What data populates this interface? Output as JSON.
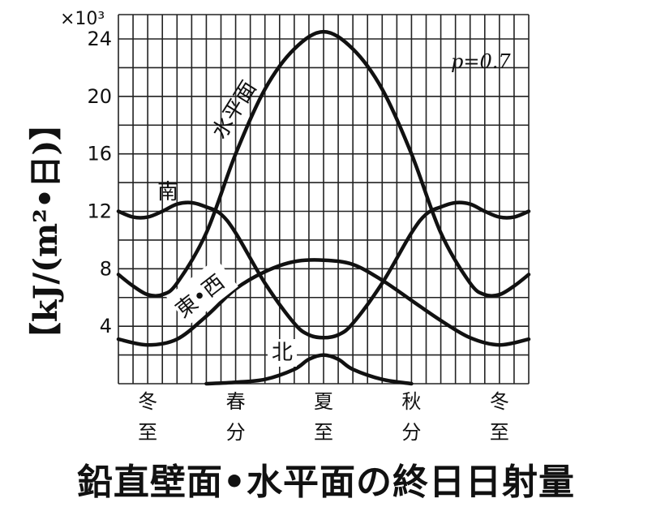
{
  "chart_data": {
    "type": "line",
    "title": "鉛直壁面•水平面の終日日射量",
    "ylabel": "【kJ/(m²•日)】",
    "y_multiplier": "×10³",
    "annotation": "p=0.7",
    "ylim": [
      0,
      24
    ],
    "yticks": [
      4,
      8,
      12,
      16,
      20,
      24
    ],
    "grid": true,
    "x_ticks": [
      {
        "line1": "冬",
        "line2": "至",
        "x": 0
      },
      {
        "line1": "春",
        "line2": "分",
        "x": 3
      },
      {
        "line1": "夏",
        "line2": "至",
        "x": 6
      },
      {
        "line1": "秋",
        "line2": "分",
        "x": 9
      },
      {
        "line1": "冬",
        "line2": "至",
        "x": 12
      }
    ],
    "xlim": [
      -1,
      13
    ],
    "series": [
      {
        "name": "水平面",
        "x": [
          -1,
          -0.5,
          0,
          0.5,
          1,
          2,
          3,
          4,
          5,
          6,
          7,
          8,
          9,
          10,
          11,
          11.5,
          12,
          12.5,
          13
        ],
        "y": [
          7.6,
          6.8,
          6.2,
          6.2,
          7.0,
          10.5,
          16.0,
          20.5,
          23.3,
          24.5,
          23.3,
          20.5,
          16.0,
          10.5,
          7.0,
          6.2,
          6.2,
          6.8,
          7.6
        ]
      },
      {
        "name": "南",
        "x": [
          -1,
          -0.5,
          0,
          0.5,
          1,
          1.5,
          2,
          2.5,
          3,
          4,
          5,
          5.5,
          6,
          6.5,
          7,
          8,
          9,
          9.5,
          10,
          10.5,
          11,
          11.5,
          12,
          12.5,
          13
        ],
        "y": [
          12.0,
          11.6,
          11.6,
          12.0,
          12.5,
          12.6,
          12.3,
          11.8,
          10.5,
          7.0,
          4.2,
          3.4,
          3.2,
          3.4,
          4.2,
          7.0,
          10.5,
          11.8,
          12.3,
          12.6,
          12.5,
          12.0,
          11.6,
          11.6,
          12.0
        ]
      },
      {
        "name": "東•西",
        "x": [
          -1,
          0,
          1,
          2,
          3,
          4,
          5,
          6,
          7,
          8,
          9,
          10,
          11,
          12,
          13
        ],
        "y": [
          3.1,
          2.7,
          3.1,
          4.7,
          6.6,
          7.8,
          8.5,
          8.6,
          8.3,
          7.2,
          5.8,
          4.4,
          3.2,
          2.7,
          3.1
        ]
      },
      {
        "name": "北",
        "x": [
          2,
          3,
          4,
          5,
          5.5,
          6,
          6.5,
          7,
          8,
          9
        ],
        "y": [
          0,
          0.1,
          0.3,
          1.0,
          1.7,
          2.0,
          1.7,
          1.0,
          0.3,
          0
        ]
      }
    ]
  }
}
